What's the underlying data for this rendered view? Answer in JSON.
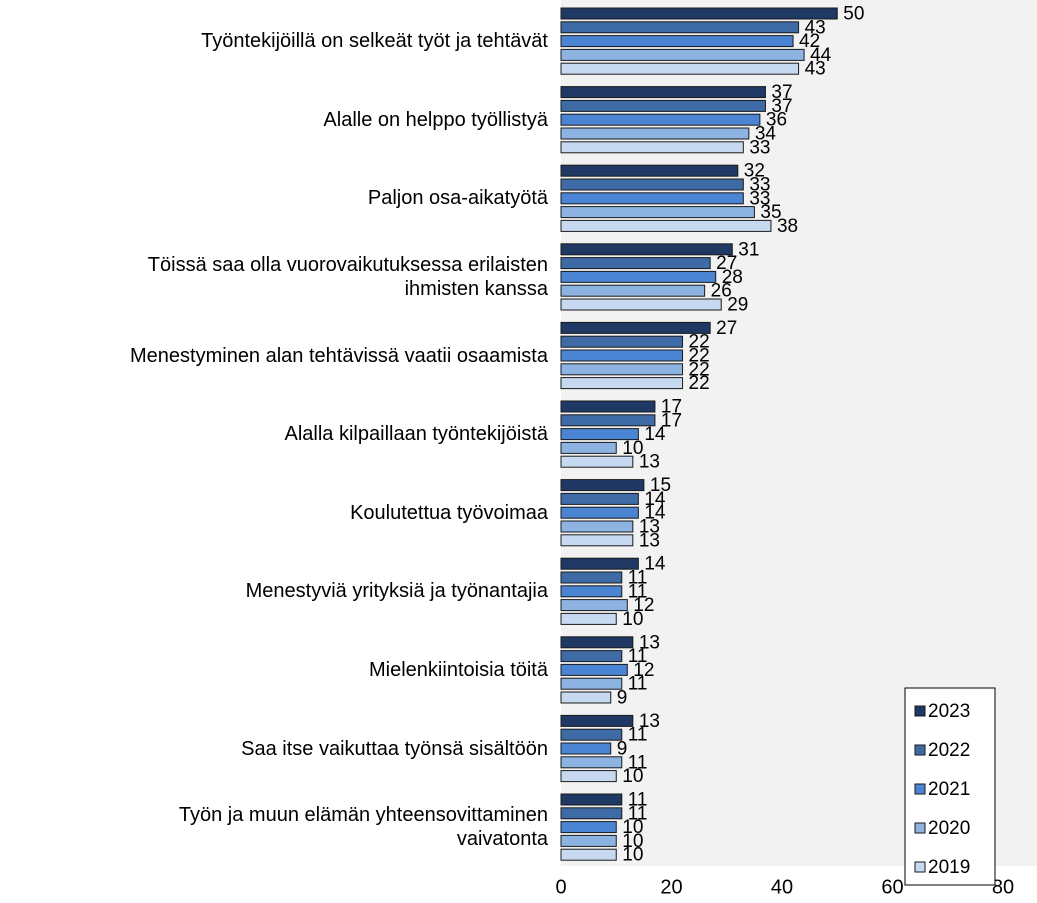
{
  "chart_data": {
    "type": "bar",
    "orientation": "horizontal",
    "categories": [
      "Työntekijöillä on selkeät työt ja tehtävät",
      "Alalle on helppo työllistyä",
      "Paljon osa-aikatyötä",
      "Töissä saa olla vuorovaikutuksessa erilaisten\nihmisten kanssa",
      "Menestyminen alan tehtävissä vaatii osaamista",
      "Alalla kilpaillaan työntekijöistä",
      "Koulutettua työvoimaa",
      "Menestyviä yrityksiä ja työnantajia",
      "Mielenkiintoisia töitä",
      "Saa itse vaikuttaa työnsä sisältöön",
      "Työn ja muun elämän yhteensovittaminen\nvaivatonta"
    ],
    "series": [
      {
        "name": "2023",
        "color": "#1f3864",
        "values": [
          50,
          37,
          32,
          31,
          27,
          17,
          15,
          14,
          13,
          13,
          11
        ]
      },
      {
        "name": "2022",
        "color": "#3e6aa6",
        "values": [
          43,
          37,
          33,
          27,
          22,
          17,
          14,
          11,
          11,
          11,
          11
        ]
      },
      {
        "name": "2021",
        "color": "#4a84d2",
        "values": [
          42,
          36,
          33,
          28,
          22,
          14,
          14,
          11,
          12,
          9,
          10
        ]
      },
      {
        "name": "2020",
        "color": "#8db3e2",
        "values": [
          44,
          34,
          35,
          26,
          22,
          10,
          13,
          12,
          11,
          11,
          10
        ]
      },
      {
        "name": "2019",
        "color": "#c6d9f0",
        "values": [
          43,
          33,
          38,
          29,
          22,
          13,
          13,
          10,
          9,
          10,
          10
        ]
      }
    ],
    "xlim": [
      0,
      80
    ],
    "xticks": [
      0,
      20,
      40,
      60,
      80
    ],
    "legend": "lower right"
  }
}
